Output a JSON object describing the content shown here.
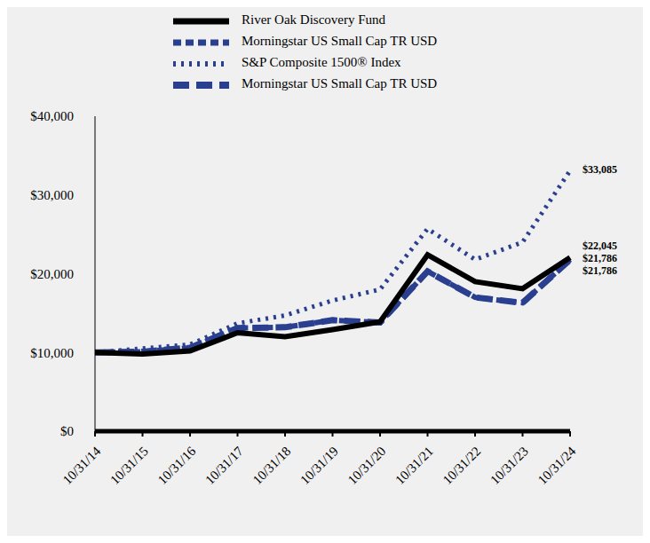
{
  "chart_data": {
    "type": "line",
    "categories": [
      "10/31/14",
      "10/31/15",
      "10/31/16",
      "10/31/17",
      "10/31/18",
      "10/31/19",
      "10/31/20",
      "10/31/21",
      "10/31/22",
      "10/31/23",
      "10/31/24"
    ],
    "series": [
      {
        "name": "River Oak Discovery Fund",
        "color": "#000000",
        "line_style": "solid",
        "values": [
          10000,
          9800,
          10200,
          12500,
          12000,
          12900,
          13900,
          22400,
          19000,
          18100,
          22045
        ]
      },
      {
        "name": "Morningstar US Small Cap TR USD",
        "color": "#2a3f8f",
        "line_style": "dashed",
        "values": [
          10000,
          10100,
          10600,
          13100,
          13200,
          14100,
          13800,
          20300,
          17000,
          16300,
          21786
        ]
      },
      {
        "name": "S&P Composite 1500® Index",
        "color": "#2a3f8f",
        "line_style": "dotted",
        "values": [
          10000,
          10500,
          11000,
          13700,
          14700,
          16600,
          18000,
          25700,
          21800,
          24000,
          33085
        ]
      },
      {
        "name": "Morningstar US Small Cap TR USD",
        "color": "#2a3f8f",
        "line_style": "longdash",
        "values": [
          10000,
          10100,
          10600,
          13100,
          13200,
          14100,
          13800,
          20300,
          17000,
          16300,
          21786
        ]
      }
    ],
    "ylim": [
      0,
      40000
    ],
    "yticks": [
      {
        "value": 0,
        "label": "$0"
      },
      {
        "value": 10000,
        "label": "$10,000"
      },
      {
        "value": 20000,
        "label": "$20,000"
      },
      {
        "value": 30000,
        "label": "$30,000"
      },
      {
        "value": 40000,
        "label": "$40,000"
      }
    ],
    "annotations": [
      {
        "text": "$33,085",
        "x": "10/31/24",
        "y": 33085
      },
      {
        "text": "$22,045",
        "x": "10/31/24",
        "y": 22045
      },
      {
        "text": "$21,786",
        "x": "10/31/24",
        "y": 21786
      },
      {
        "text": "$21,786",
        "x": "10/31/24",
        "y": 21786
      }
    ]
  }
}
